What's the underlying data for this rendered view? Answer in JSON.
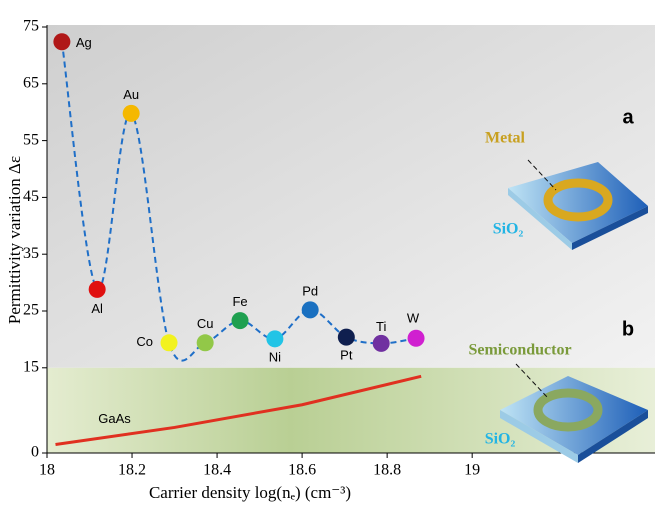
{
  "chart_data": {
    "type": "scatter",
    "y_label": "Permittivity variation Δε",
    "x_label": "Carrier density log(nₑ) (cm⁻³)",
    "xlim": [
      18,
      19.43
    ],
    "xticks": [
      18,
      18.2,
      18.4,
      18.6,
      18.8,
      19
    ],
    "ylim": [
      0,
      75
    ],
    "yticks": [
      0,
      15,
      25,
      35,
      45,
      55,
      65,
      75
    ],
    "labels": [
      "Ag",
      "Al",
      "Au",
      "Co",
      "Cu",
      "Fe",
      "Ni",
      "Pd",
      "Pt",
      "Ti",
      "W"
    ],
    "x": [
      18.035,
      18.118,
      18.198,
      18.287,
      18.372,
      18.454,
      18.536,
      18.619,
      18.704,
      18.786,
      18.868
    ],
    "values": [
      72.4,
      28.8,
      59.8,
      19.4,
      19.4,
      23.3,
      20.1,
      25.2,
      20.4,
      19.3,
      20.2
    ],
    "colors": [
      "#b01818",
      "#e01010",
      "#f5b800",
      "#f2f21e",
      "#92c848",
      "#1fa050",
      "#22c4e6",
      "#1a70c0",
      "#0f1f4f",
      "#7030a0",
      "#d020d0"
    ],
    "line_color": "#1f6fc8",
    "gaas": {
      "name": "GaAs",
      "color": "#e03020",
      "x": [
        18.02,
        18.3,
        18.6,
        18.88
      ],
      "values": [
        1.5,
        4.5,
        8.5,
        13.5
      ]
    },
    "annotations": {
      "a": "a",
      "b": "b",
      "metal": "Metal",
      "sio2_a": "SiO₂",
      "semiconductor": "Semiconductor",
      "sio2_b": "SiO₂"
    }
  }
}
